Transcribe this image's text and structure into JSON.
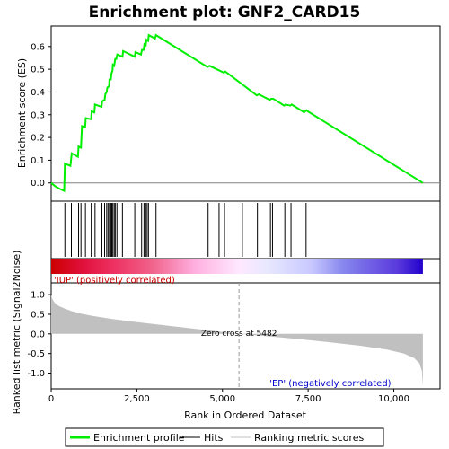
{
  "chart_data": {
    "type": "line",
    "title": "Enrichment plot: GNF2_CARD15",
    "es_panel": {
      "ylabel": "Enrichment score (ES)",
      "ylim": [
        -0.08,
        0.69
      ],
      "yticks": [
        "0.0",
        "0.1",
        "0.2",
        "0.3",
        "0.4",
        "0.5",
        "0.6"
      ],
      "ytick_values": [
        0.0,
        0.1,
        0.2,
        0.3,
        0.4,
        0.5,
        0.6
      ],
      "series": [
        {
          "name": "Enrichment profile",
          "color": "#00ee00",
          "x": [
            0,
            120,
            240,
            380,
            400,
            560,
            600,
            780,
            800,
            870,
            900,
            990,
            1010,
            1170,
            1180,
            1260,
            1280,
            1470,
            1490,
            1560,
            1580,
            1620,
            1640,
            1690,
            1700,
            1740,
            1760,
            1790,
            1800,
            1840,
            1870,
            1900,
            1930,
            2080,
            2100,
            2440,
            2460,
            2620,
            2650,
            2700,
            2720,
            2760,
            2780,
            2830,
            2850,
            3030,
            3060,
            4560,
            4620,
            5040,
            5080,
            6000,
            6060,
            6380,
            6420,
            6480,
            6540,
            6800,
            6840,
            6980,
            7020,
            7340,
            7380,
            7450,
            7490,
            10850
          ],
          "y": [
            0.0,
            -0.015,
            -0.025,
            -0.035,
            0.085,
            0.075,
            0.13,
            0.115,
            0.16,
            0.155,
            0.25,
            0.245,
            0.285,
            0.28,
            0.315,
            0.31,
            0.345,
            0.335,
            0.36,
            0.365,
            0.39,
            0.4,
            0.42,
            0.425,
            0.455,
            0.455,
            0.48,
            0.495,
            0.52,
            0.515,
            0.545,
            0.545,
            0.565,
            0.555,
            0.58,
            0.555,
            0.575,
            0.565,
            0.585,
            0.585,
            0.61,
            0.605,
            0.63,
            0.625,
            0.65,
            0.635,
            0.65,
            0.51,
            0.515,
            0.485,
            0.49,
            0.385,
            0.39,
            0.365,
            0.37,
            0.37,
            0.365,
            0.34,
            0.345,
            0.34,
            0.345,
            0.315,
            0.31,
            0.32,
            0.315,
            0.0
          ]
        }
      ]
    },
    "hits": [
      400,
      590,
      800,
      870,
      1000,
      1170,
      1280,
      1480,
      1560,
      1620,
      1660,
      1700,
      1740,
      1770,
      1800,
      1840,
      1870,
      1920,
      2080,
      2440,
      2640,
      2710,
      2760,
      2800,
      2840,
      3060,
      4580,
      4900,
      5060,
      5580,
      6020,
      6400,
      6460,
      6820,
      7000,
      7440
    ],
    "metric_panel": {
      "ylabel": "Ranked list metric (Signal2Noise)",
      "ylim": [
        -1.4,
        1.3
      ],
      "yticks": [
        "1.0",
        "0.5",
        "0.0",
        "-0.5",
        "-1.0"
      ],
      "ytick_values": [
        1.0,
        0.5,
        0.0,
        -0.5,
        -1.0
      ],
      "curve_x": [
        0,
        30,
        80,
        150,
        250,
        400,
        600,
        850,
        1200,
        1700,
        2300,
        3000,
        3800,
        4600,
        5482,
        6300,
        7200,
        8100,
        9000,
        9800,
        10300,
        10600,
        10750,
        10820,
        10850
      ],
      "curve_y": [
        1.0,
        0.9,
        0.82,
        0.75,
        0.7,
        0.64,
        0.58,
        0.52,
        0.46,
        0.39,
        0.32,
        0.25,
        0.17,
        0.09,
        0.0,
        -0.06,
        -0.13,
        -0.21,
        -0.3,
        -0.4,
        -0.5,
        -0.62,
        -0.75,
        -0.95,
        -1.35
      ],
      "zero_cross": 5482,
      "zero_label": "Zero cross at 5482",
      "pos_label": "'IUP' (positively correlated)",
      "neg_label": "'EP' (negatively correlated)"
    },
    "xaxis": {
      "label": "Rank in Ordered Dataset",
      "xlim": [
        0,
        11350
      ],
      "ticks": [
        "0",
        "2,500",
        "5,000",
        "7,500",
        "10,000"
      ],
      "tick_values": [
        0,
        2500,
        5000,
        7500,
        10000
      ],
      "n": 10850
    },
    "colorbar_stops": [
      {
        "x": 0,
        "color": "#cc0000"
      },
      {
        "x": 900,
        "color": "#e0103a"
      },
      {
        "x": 1800,
        "color": "#ee3060"
      },
      {
        "x": 2900,
        "color": "#f06088"
      },
      {
        "x": 4200,
        "color": "#ffb0e0"
      },
      {
        "x": 5482,
        "color": "#ffe8ff"
      },
      {
        "x": 6300,
        "color": "#e8e8ff"
      },
      {
        "x": 7600,
        "color": "#c8c8ff"
      },
      {
        "x": 8500,
        "color": "#8888ee"
      },
      {
        "x": 10100,
        "color": "#5a3adc"
      },
      {
        "x": 10850,
        "color": "#2200cc"
      }
    ],
    "legend": {
      "placement": "bottom",
      "items": [
        {
          "label": "Enrichment profile",
          "color": "#00ee00",
          "kind": "thick-line"
        },
        {
          "label": "Hits",
          "color": "#000000",
          "kind": "line"
        },
        {
          "label": "Ranking metric scores",
          "color": "#c0c0c0",
          "kind": "line"
        }
      ]
    }
  }
}
